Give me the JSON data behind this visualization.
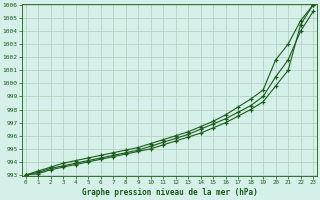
{
  "xlabel": "Graphe pression niveau de la mer (hPa)",
  "ylim": [
    993,
    1006
  ],
  "xlim": [
    0,
    23
  ],
  "yticks": [
    993,
    994,
    995,
    996,
    997,
    998,
    999,
    1000,
    1001,
    1002,
    1003,
    1004,
    1005,
    1006
  ],
  "xticks": [
    0,
    1,
    2,
    3,
    4,
    5,
    6,
    7,
    8,
    9,
    10,
    11,
    12,
    13,
    14,
    15,
    16,
    17,
    18,
    19,
    20,
    21,
    22,
    23
  ],
  "bg_color": "#d4f0e8",
  "grid_color": "#b0ccbb",
  "line_color": "#1a5c1a",
  "marker": "+",
  "line1": [
    993.0,
    993.3,
    993.6,
    993.9,
    994.1,
    994.3,
    994.5,
    994.7,
    994.9,
    995.1,
    995.4,
    995.7,
    996.0,
    996.3,
    996.7,
    997.1,
    997.6,
    998.2,
    998.8,
    999.5,
    1001.8,
    1003.0,
    1004.8,
    1006.0
  ],
  "line2": [
    993.0,
    993.2,
    993.5,
    993.7,
    993.9,
    994.1,
    994.3,
    994.5,
    994.7,
    994.9,
    995.2,
    995.5,
    995.8,
    996.1,
    996.5,
    996.9,
    997.3,
    997.8,
    998.3,
    999.0,
    1000.5,
    1001.8,
    1004.0,
    1005.5
  ],
  "line3": [
    993.0,
    993.1,
    993.4,
    993.6,
    993.8,
    994.0,
    994.2,
    994.4,
    994.6,
    994.8,
    995.0,
    995.3,
    995.6,
    995.9,
    996.2,
    996.6,
    997.0,
    997.5,
    998.0,
    998.6,
    999.8,
    1001.0,
    1004.5,
    1006.0
  ]
}
